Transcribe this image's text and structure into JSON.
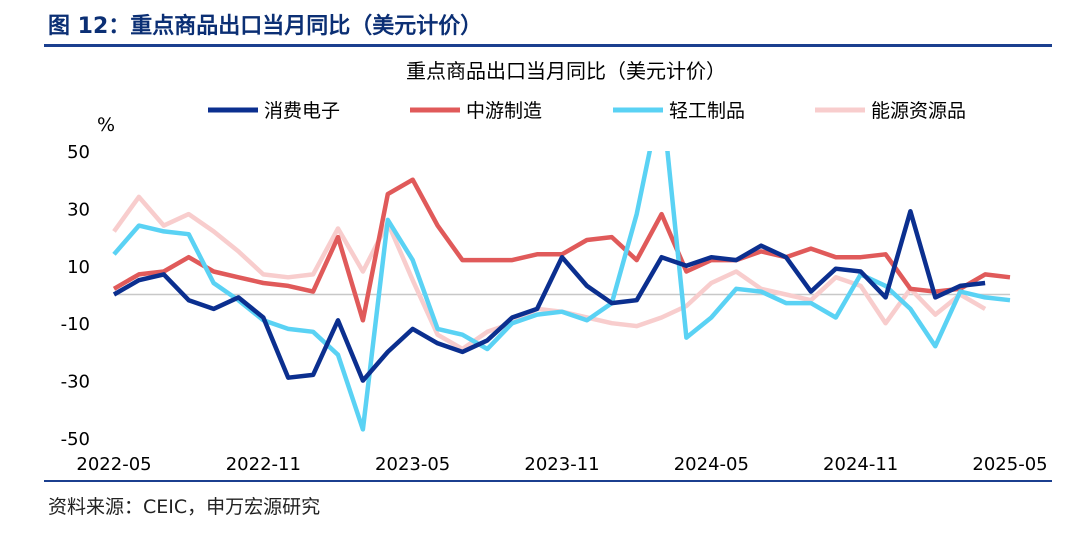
{
  "figure_title": "图 12：重点商品出口当月同比（美元计价）",
  "source": "资料来源：CEIC，申万宏源研究",
  "chart_data": {
    "type": "line",
    "title": "重点商品出口当月同比（美元计价）",
    "ylabel": "%",
    "ylim": [
      -50,
      50
    ],
    "yticks": [
      50,
      30,
      10,
      -10,
      -30,
      -50
    ],
    "grid": false,
    "legend_position": "top",
    "x_ticklabels": [
      "2022-05",
      "2022-11",
      "2023-05",
      "2023-11",
      "2024-05",
      "2024-11",
      "2025-05"
    ],
    "x": [
      "2022-05",
      "2022-06",
      "2022-07",
      "2022-08",
      "2022-09",
      "2022-10",
      "2022-11",
      "2022-12",
      "2023-01",
      "2023-02",
      "2023-03",
      "2023-04",
      "2023-05",
      "2023-06",
      "2023-07",
      "2023-08",
      "2023-09",
      "2023-10",
      "2023-11",
      "2023-12",
      "2024-01",
      "2024-02",
      "2024-03",
      "2024-04",
      "2024-05",
      "2024-06",
      "2024-07",
      "2024-08",
      "2024-09",
      "2024-10",
      "2024-11",
      "2024-12",
      "2025-01",
      "2025-02",
      "2025-03",
      "2025-04",
      "2025-05"
    ],
    "series": [
      {
        "name": "消费电子",
        "color": "#0b2f8f",
        "values": [
          0,
          5,
          7,
          -2,
          -5,
          -1,
          -8,
          -29,
          -28,
          -9,
          -30,
          -20,
          -12,
          -17,
          -20,
          -16,
          -8,
          -5,
          13,
          3,
          -3,
          -2,
          13,
          10,
          13,
          12,
          17,
          13,
          1,
          9,
          8,
          -1,
          29,
          -1,
          3,
          4,
          null
        ]
      },
      {
        "name": "中游制造",
        "color": "#e05a5a",
        "values": [
          2,
          7,
          8,
          13,
          8,
          6,
          4,
          3,
          1,
          20,
          -9,
          35,
          40,
          24,
          12,
          12,
          12,
          14,
          14,
          19,
          20,
          12,
          28,
          8,
          12,
          12,
          15,
          13,
          16,
          13,
          13,
          14,
          2,
          1,
          2,
          7,
          6
        ]
      },
      {
        "name": "轻工制品",
        "color": "#5ad2f4",
        "values": [
          14,
          24,
          22,
          21,
          4,
          -2,
          -9,
          -12,
          -13,
          -21,
          -47,
          26,
          12,
          -12,
          -14,
          -19,
          -10,
          -7,
          -6,
          -9,
          -3,
          28,
          70,
          -15,
          -8,
          2,
          1,
          -3,
          -3,
          -8,
          7,
          3,
          -5,
          -18,
          1,
          -1,
          -2
        ]
      },
      {
        "name": "能源资源品",
        "color": "#f8cdcd",
        "values": [
          22,
          34,
          24,
          28,
          22,
          15,
          7,
          6,
          7,
          23,
          8,
          25,
          5,
          -14,
          -19,
          -13,
          -10,
          -5,
          -6,
          -8,
          -10,
          -11,
          -8,
          -4,
          4,
          8,
          2,
          0,
          -2,
          6,
          3,
          -10,
          2,
          -7,
          0,
          -5,
          null
        ]
      }
    ]
  }
}
